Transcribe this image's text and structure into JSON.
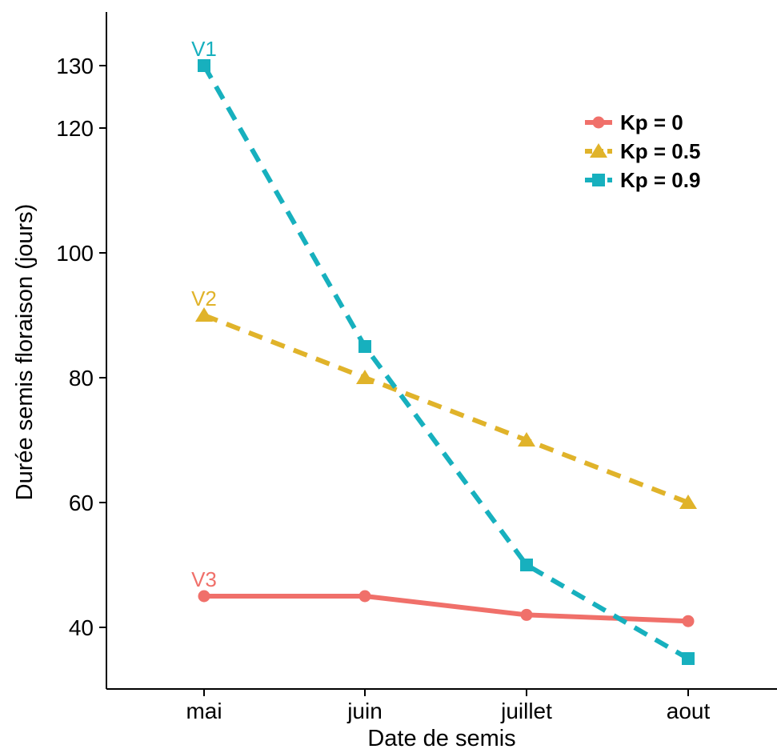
{
  "chart_data": {
    "type": "line",
    "xlabel": "Date de semis",
    "ylabel": "Durée semis floraison (jours)",
    "categories": [
      "mai",
      "juin",
      "juillet",
      "aout"
    ],
    "y_ticks": [
      40,
      60,
      80,
      100,
      120,
      130
    ],
    "ylim": [
      30,
      136
    ],
    "grid": false,
    "legend_position": "top-right",
    "series": [
      {
        "name": "Kp = 0",
        "values": [
          45,
          45,
          42,
          41
        ],
        "color": "#F0706A",
        "marker": "circle",
        "dashed": false,
        "label": "V3"
      },
      {
        "name": "Kp = 0.5",
        "values": [
          90,
          80,
          70,
          60
        ],
        "color": "#E0B32A",
        "marker": "triangle",
        "dashed": true,
        "label": "V2"
      },
      {
        "name": "Kp = 0.9",
        "values": [
          130,
          85,
          50,
          35
        ],
        "color": "#17B0BE",
        "marker": "square",
        "dashed": true,
        "label": "V1"
      }
    ]
  }
}
